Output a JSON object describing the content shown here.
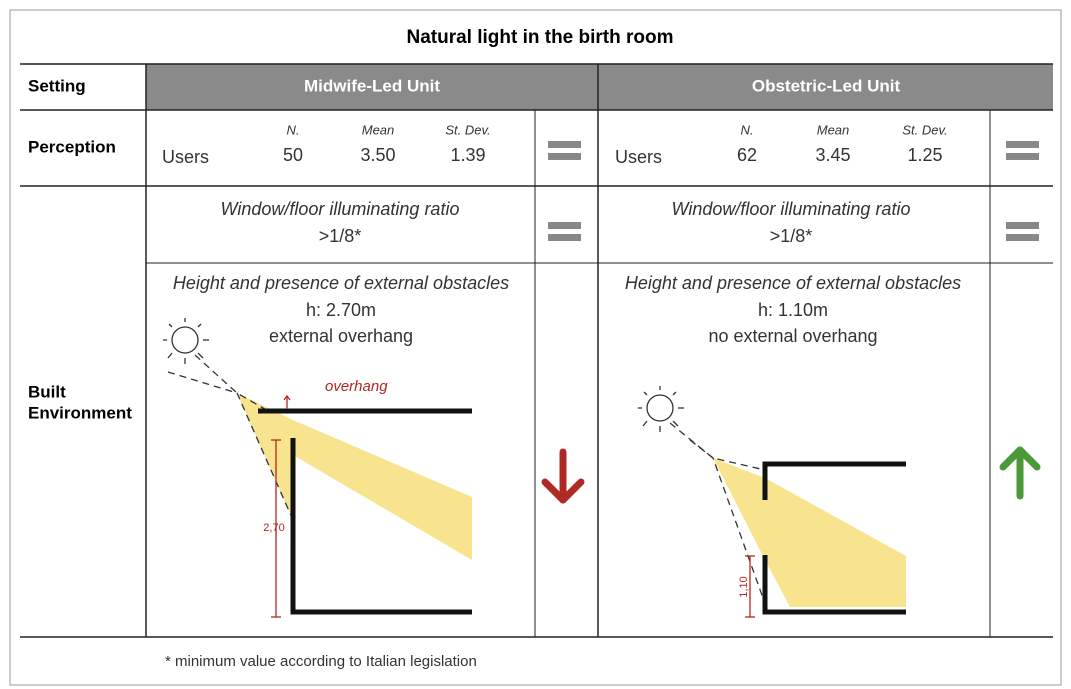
{
  "title": "Natural light in the birth room",
  "header": {
    "setting": "Setting",
    "columns": [
      "Midwife-Led Unit",
      "Obstetric-Led Unit"
    ]
  },
  "perception": {
    "label": "Perception",
    "stat_headers": [
      "N.",
      "Mean",
      "St. Dev."
    ],
    "units": [
      {
        "group": "Users",
        "n": "50",
        "mean": "3.50",
        "sd": "1.39"
      },
      {
        "group": "Users",
        "n": "62",
        "mean": "3.45",
        "sd": "1.25"
      }
    ]
  },
  "built_environment": {
    "label_lines": [
      "Built",
      "Environment"
    ],
    "window": {
      "label": "Window/floor illuminating ratio",
      "values": [
        ">1/8*",
        ">1/8*"
      ]
    },
    "obstacles": {
      "label": "Height and presence of external obstacles",
      "units": [
        {
          "height": "h: 2.70m",
          "overhang": "external overhang",
          "sketch_label": "overhang",
          "dimension": "2,70"
        },
        {
          "height": "h: 1.10m",
          "overhang": "no external overhang",
          "dimension": "1,10"
        }
      ]
    }
  },
  "footnote": "* minimum value according to Italian legislation"
}
